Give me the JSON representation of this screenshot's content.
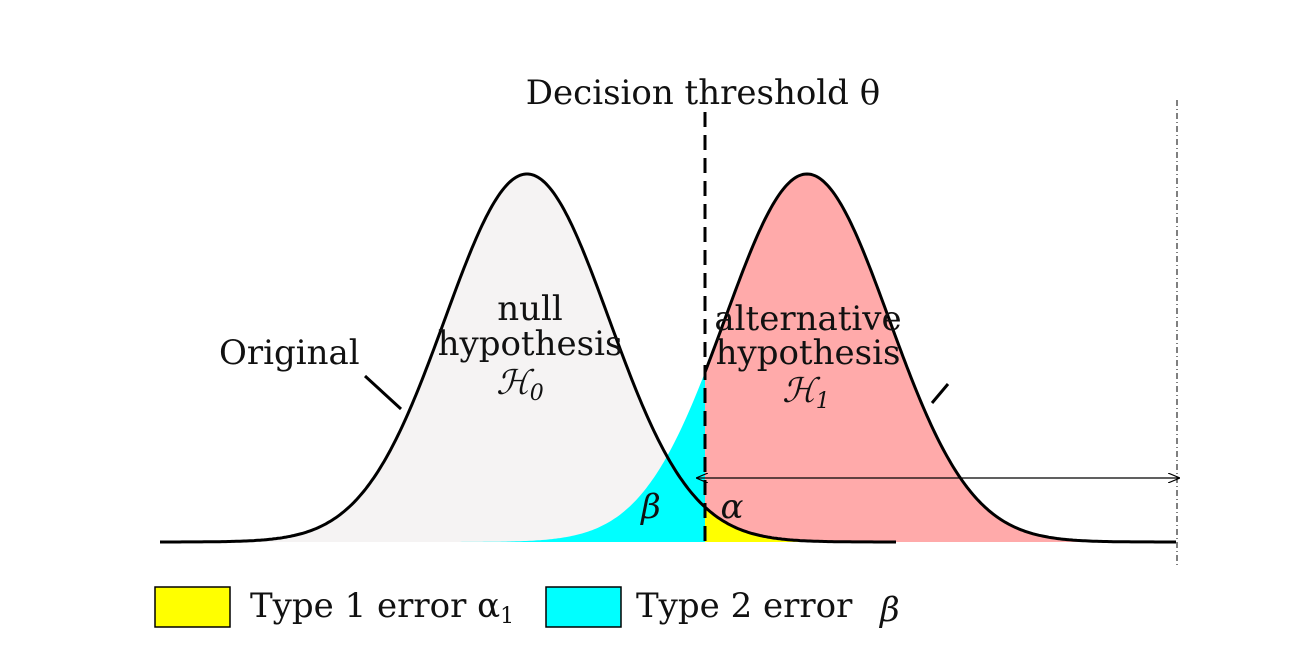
{
  "title": "Decision threshold θ",
  "labels": {
    "original": "Original",
    "null_line1": "null",
    "null_line2": "hypothesis",
    "null_symbol": "ℋ",
    "null_sub": "0",
    "alt_line1": "alternative",
    "alt_line2": "hypothesis",
    "alt_symbol": "ℋ",
    "alt_sub": "1",
    "beta": "β",
    "alpha": "α"
  },
  "legend": {
    "type1": {
      "text": "Type 1 error α",
      "sub": "1",
      "color": "#ffff00"
    },
    "type2": {
      "text": "Type 2 error",
      "symbol": "β",
      "color": "#00ffff"
    }
  },
  "colors": {
    "null_fill": "#f5f3f3",
    "alt_fill": "#ffaaaa",
    "beta_fill": "#00ffff",
    "alpha_fill": "#ffff00",
    "stroke": "#000000"
  }
}
